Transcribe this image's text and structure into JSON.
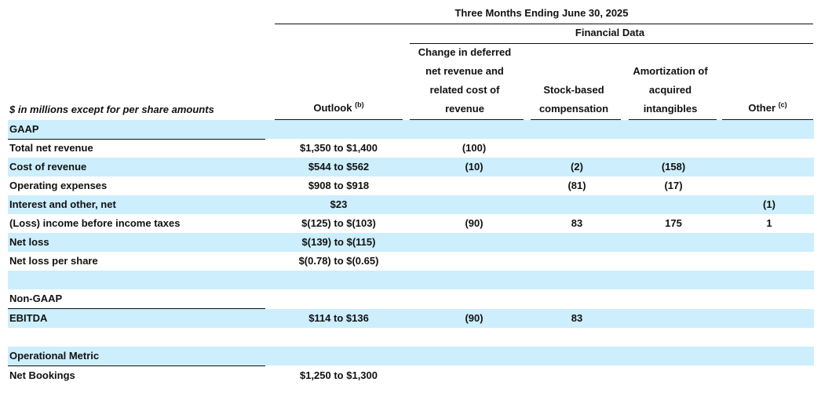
{
  "header": {
    "period": "Three Months Ending June 30, 2025",
    "financial_data": "Financial Data",
    "units_label": "$ in millions except for per share amounts",
    "outlook": "Outlook",
    "outlook_note": "(b)",
    "col_deferred": [
      "Change in deferred",
      "net revenue and",
      "related cost of",
      "revenue"
    ],
    "col_stock": [
      "Stock-based",
      "compensation"
    ],
    "col_amort": [
      "Amortization of",
      "acquired",
      "intangibles"
    ],
    "col_other": "Other",
    "other_note": "(c)"
  },
  "sections": {
    "gaap": "GAAP",
    "non_gaap": "Non-GAAP",
    "operational": "Operational Metric"
  },
  "rows": {
    "total_net_revenue": {
      "label": "Total net revenue",
      "outlook": "$1,350 to $1,400",
      "deferred": "(100)",
      "stock": "",
      "amort": "",
      "other": ""
    },
    "cost_of_revenue": {
      "label": "Cost of revenue",
      "outlook": "$544 to $562",
      "deferred": "(10)",
      "stock": "(2)",
      "amort": "(158)",
      "other": ""
    },
    "operating_expenses": {
      "label": "Operating expenses",
      "outlook": "$908 to $918",
      "deferred": "",
      "stock": "(81)",
      "amort": "(17)",
      "other": ""
    },
    "interest_other": {
      "label": "Interest and other, net",
      "outlook": "$23",
      "deferred": "",
      "stock": "",
      "amort": "",
      "other": "(1)"
    },
    "loss_before_tax": {
      "label": "(Loss) income before income taxes",
      "outlook": "$(125) to $(103)",
      "deferred": "(90)",
      "stock": "83",
      "amort": "175",
      "other": "1"
    },
    "net_loss": {
      "label": "Net loss",
      "outlook": "$(139) to $(115)"
    },
    "net_loss_per_share": {
      "label": "Net loss per share",
      "outlook": "$(0.78) to $(0.65)"
    },
    "ebitda": {
      "label": "EBITDA",
      "outlook": "$114 to $136",
      "deferred": "(90)",
      "stock": "83"
    },
    "net_bookings": {
      "label": "Net Bookings",
      "outlook": "$1,250 to $1,300"
    }
  },
  "colors": {
    "row_shade": "#cdeefd",
    "text": "#111111",
    "rule": "#111111"
  }
}
